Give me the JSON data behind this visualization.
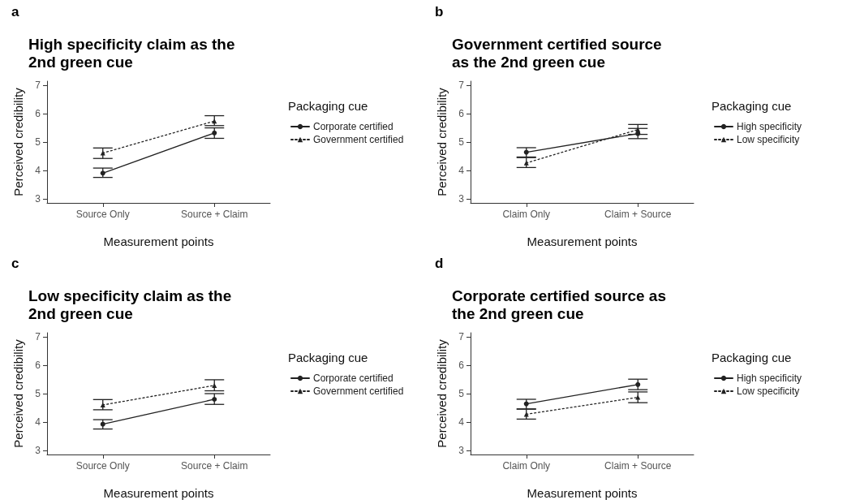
{
  "chart_data": [
    {
      "type": "line",
      "title": "High specificity claim as the 2nd green cue",
      "annotations": [
        "a"
      ],
      "xlabel": "Measurement points",
      "ylabel": "Perceived credibility",
      "legend_title": "Packaging cue",
      "legend": "right",
      "grid": false,
      "categories": [
        "Source Only",
        "Source + Claim"
      ],
      "ylim": [
        2.85,
        7.15
      ],
      "yticks": [
        3,
        4,
        5,
        6,
        7
      ],
      "series": [
        {
          "name": "Corporate certified",
          "color": "#222222",
          "marker": "circle",
          "line_style": "solid",
          "values": [
            3.9,
            5.32
          ],
          "errors": [
            [
              3.75,
              4.08
            ],
            [
              5.13,
              5.5
            ]
          ]
        },
        {
          "name": "Government certified",
          "color": "#222222",
          "marker": "triangle",
          "line_style": "dotted",
          "values": [
            4.61,
            5.74
          ],
          "errors": [
            [
              4.42,
              4.79
            ],
            [
              5.58,
              5.93
            ]
          ]
        }
      ]
    },
    {
      "type": "line",
      "title": "Government certified source as the 2nd green cue",
      "annotations": [
        "b"
      ],
      "xlabel": "Measurement points",
      "ylabel": "Perceived credibility",
      "legend_title": "Packaging cue",
      "legend": "right",
      "grid": false,
      "categories": [
        "Claim Only",
        "Claim + Source"
      ],
      "ylim": [
        2.85,
        7.15
      ],
      "yticks": [
        3,
        4,
        5,
        6,
        7
      ],
      "series": [
        {
          "name": "High specificity",
          "color": "#222222",
          "marker": "circle",
          "line_style": "solid",
          "values": [
            4.64,
            5.3
          ],
          "errors": [
            [
              4.47,
              4.8
            ],
            [
              5.12,
              5.48
            ]
          ]
        },
        {
          "name": "Low specificity",
          "color": "#222222",
          "marker": "triangle",
          "line_style": "dotted",
          "values": [
            4.26,
            5.44
          ],
          "errors": [
            [
              4.1,
              4.45
            ],
            [
              5.27,
              5.62
            ]
          ]
        }
      ]
    },
    {
      "type": "line",
      "title": "Low specificity claim as the 2nd green cue",
      "annotations": [
        "c"
      ],
      "xlabel": "Measurement points",
      "ylabel": "Perceived credibility",
      "legend_title": "Packaging cue",
      "legend": "right",
      "grid": false,
      "categories": [
        "Source Only",
        "Source + Claim"
      ],
      "ylim": [
        2.85,
        7.15
      ],
      "yticks": [
        3,
        4,
        5,
        6,
        7
      ],
      "series": [
        {
          "name": "Corporate certified",
          "color": "#222222",
          "marker": "circle",
          "line_style": "solid",
          "values": [
            3.92,
            4.8
          ],
          "errors": [
            [
              3.75,
              4.08
            ],
            [
              4.62,
              5.0
            ]
          ]
        },
        {
          "name": "Government certified",
          "color": "#222222",
          "marker": "triangle",
          "line_style": "dotted",
          "values": [
            4.6,
            5.29
          ],
          "errors": [
            [
              4.43,
              4.79
            ],
            [
              5.1,
              5.49
            ]
          ]
        }
      ]
    },
    {
      "type": "line",
      "title": "Corporate certified source as the 2nd green cue",
      "annotations": [
        "d"
      ],
      "xlabel": "Measurement points",
      "ylabel": "Perceived credibility",
      "legend_title": "Packaging cue",
      "legend": "right",
      "grid": false,
      "categories": [
        "Claim Only",
        "Claim + Source"
      ],
      "ylim": [
        2.85,
        7.15
      ],
      "yticks": [
        3,
        4,
        5,
        6,
        7
      ],
      "series": [
        {
          "name": "High specificity",
          "color": "#222222",
          "marker": "circle",
          "line_style": "solid",
          "values": [
            4.64,
            5.32
          ],
          "errors": [
            [
              4.46,
              4.8
            ],
            [
              5.14,
              5.51
            ]
          ]
        },
        {
          "name": "Low specificity",
          "color": "#222222",
          "marker": "triangle",
          "line_style": "dotted",
          "values": [
            4.27,
            4.87
          ],
          "errors": [
            [
              4.1,
              4.45
            ],
            [
              4.68,
              5.06
            ]
          ]
        }
      ]
    }
  ]
}
